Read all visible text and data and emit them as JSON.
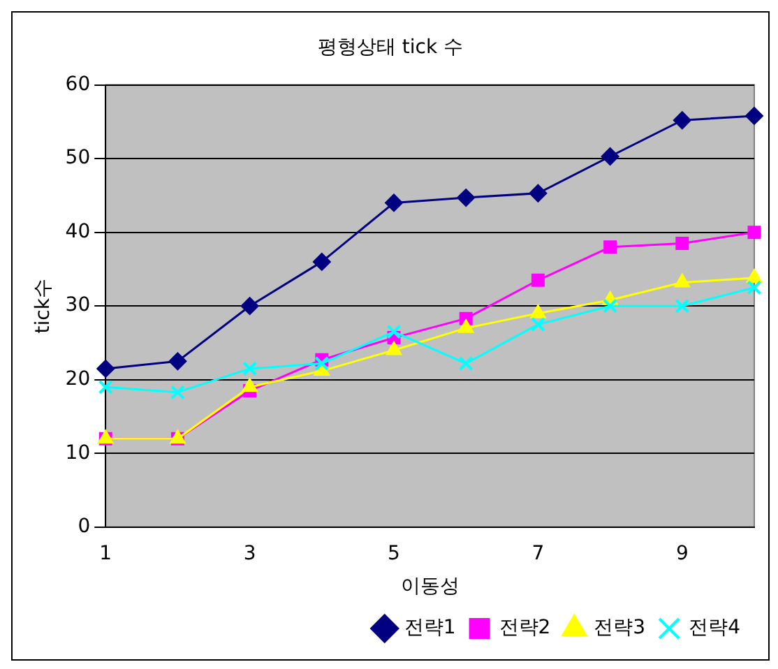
{
  "chart_data": {
    "type": "line",
    "title": "평형상태 tick 수",
    "xlabel": "이동성",
    "ylabel": "tick수",
    "categories": [
      "1",
      null,
      "3",
      null,
      "5",
      null,
      "7",
      null,
      "9",
      null
    ],
    "series": [
      {
        "name": "전략1",
        "color": "#000080",
        "marker": "diamond",
        "values": [
          21.5,
          22.5,
          30,
          36,
          44,
          44.7,
          45.3,
          50.3,
          55.2,
          55.8
        ]
      },
      {
        "name": "전략2",
        "color": "#ff00ff",
        "marker": "square",
        "values": [
          12,
          12,
          18.5,
          22.7,
          25.7,
          28.3,
          33.5,
          38,
          38.5,
          40
        ]
      },
      {
        "name": "전략3",
        "color": "#ffff00",
        "marker": "triangle",
        "values": [
          12,
          12,
          19,
          21.2,
          24,
          27,
          29,
          30.8,
          33.2,
          33.8
        ]
      },
      {
        "name": "전략4",
        "color": "#00ffff",
        "marker": "cross",
        "values": [
          19,
          18.3,
          21.5,
          22.2,
          26.5,
          22.2,
          27.5,
          30,
          30,
          32.5
        ]
      }
    ],
    "ylim": [
      0,
      60
    ],
    "yticks": [
      0,
      10,
      20,
      30,
      40,
      50,
      60
    ],
    "grid": "y",
    "legend": "bottom right"
  }
}
